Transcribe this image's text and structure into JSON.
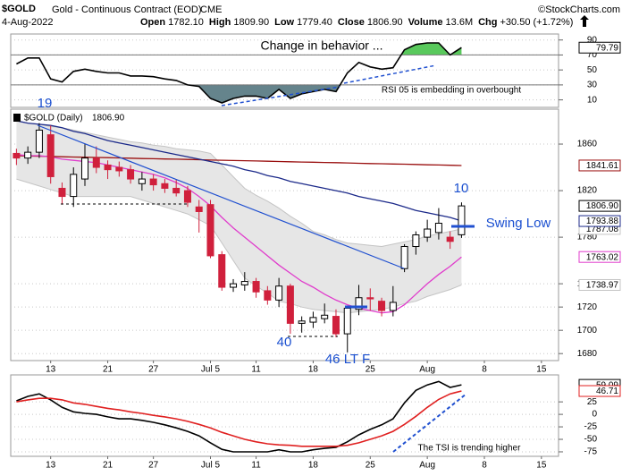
{
  "header": {
    "symbol": "$GOLD",
    "description": "Gold - Continuous Contract (EOD)",
    "exchange": "CME",
    "source": "©StockCharts.com",
    "date": "4-Aug-2022",
    "quote": [
      {
        "label": "Open",
        "value": "1782.10"
      },
      {
        "label": "High",
        "value": "1809.90"
      },
      {
        "label": "Low",
        "value": "1779.40"
      },
      {
        "label": "Close",
        "value": "1806.90"
      },
      {
        "label": "Volume",
        "value": "13.6M"
      },
      {
        "label": "Chg",
        "value": "+30.50 (+1.72%)"
      }
    ]
  },
  "chart_data": [
    {
      "type": "line",
      "series": [
        {
          "color": "#000000",
          "end_label": "79.79",
          "values": [
            58,
            66,
            66,
            38,
            34,
            48,
            51,
            48,
            46,
            46,
            42,
            42,
            41,
            38,
            36,
            30,
            28,
            12,
            6,
            12,
            15,
            15,
            12,
            24,
            12,
            18,
            21,
            24,
            21,
            46,
            60,
            54,
            51,
            53,
            77,
            84,
            86,
            86,
            70,
            79.79,
            null,
            null,
            null,
            null,
            null,
            null,
            null,
            null
          ]
        }
      ],
      "ylim": [
        0,
        98
      ],
      "yticks": [
        10,
        30,
        50,
        70,
        90
      ],
      "grid": true,
      "overbought": 70,
      "oversold": 30,
      "overbought_color": "#3cc040",
      "oversold_color": "#4a6f78",
      "annotations": [
        "Change in behavior ...",
        "RSI 05 is embedding in overbought"
      ]
    },
    {
      "type": "candlestick",
      "name": "$GOLD (Daily)",
      "end_label": "1806.90",
      "categories": [
        null,
        null,
        null,
        "13",
        null,
        null,
        null,
        null,
        "21",
        null,
        null,
        null,
        "27",
        null,
        null,
        null,
        null,
        "Jul 5",
        null,
        null,
        null,
        "11",
        null,
        null,
        null,
        null,
        "18",
        null,
        null,
        null,
        null,
        "25",
        null,
        null,
        null,
        null,
        "Aug",
        null,
        null,
        null,
        null,
        "8",
        null,
        null,
        null,
        null,
        "15",
        null
      ],
      "open": [
        1852,
        1848,
        1853,
        1868,
        1822,
        1815,
        1830,
        1848,
        1842,
        1840,
        1838,
        1826,
        1830,
        1826,
        1822,
        1820,
        1806,
        1808,
        1765,
        1737,
        1739,
        1742,
        1734,
        1726,
        1738,
        1706,
        1707,
        1710,
        1712,
        1697,
        1718,
        1728,
        1725,
        1717,
        1753,
        1772,
        1780,
        1784,
        1780,
        1782.1,
        null,
        null,
        null,
        null,
        null,
        null,
        null,
        null
      ],
      "high": [
        1856,
        1858,
        1878,
        1876,
        1827,
        1840,
        1860,
        1858,
        1846,
        1845,
        1842,
        1836,
        1834,
        1830,
        1830,
        1824,
        1812,
        1812,
        1768,
        1744,
        1750,
        1745,
        1738,
        1745,
        1740,
        1712,
        1716,
        1723,
        1718,
        1721,
        1739,
        1736,
        1728,
        1738,
        1774,
        1785,
        1795,
        1805,
        1785,
        1809.9,
        null,
        null,
        null,
        null,
        null,
        null,
        null,
        null
      ],
      "low": [
        1842,
        1843,
        1848,
        1826,
        1808,
        1806,
        1824,
        1835,
        1830,
        1832,
        1826,
        1820,
        1820,
        1818,
        1815,
        1806,
        1784,
        1762,
        1734,
        1733,
        1734,
        1728,
        1722,
        1720,
        1697,
        1698,
        1702,
        1706,
        1694,
        1681,
        1713,
        1717,
        1712,
        1712,
        1750,
        1765,
        1776,
        1778,
        1770,
        1779.4,
        null,
        null,
        null,
        null,
        null,
        null,
        null,
        null
      ],
      "close": [
        1848,
        1853,
        1872,
        1832,
        1815,
        1834,
        1848,
        1840,
        1838,
        1837,
        1830,
        1830,
        1825,
        1822,
        1818,
        1810,
        1802,
        1764,
        1737,
        1740,
        1742,
        1733,
        1726,
        1738,
        1706,
        1708,
        1711,
        1713,
        1697,
        1719,
        1728,
        1727,
        1717,
        1724,
        1772,
        1782,
        1787,
        1792,
        1776.4,
        1806.9,
        null,
        null,
        null,
        null,
        null,
        null,
        null,
        null
      ],
      "up_color": "#000000",
      "down_color": "#d0203c",
      "band": {
        "color": "#e6e6e6",
        "edge_color": "#c4c4c4",
        "upper_label": "1787.08",
        "lower_label": "1738.97",
        "upper": [
          1880,
          1878,
          1877,
          1875,
          1874,
          1872,
          1870,
          1868,
          1866,
          1864,
          1862,
          1861,
          1859,
          1858,
          1856,
          1855,
          1854,
          1852,
          1842,
          1832,
          1822,
          1816,
          1811,
          1805,
          1798,
          1792,
          1785,
          1782,
          1778,
          1775,
          1774,
          1773,
          1772,
          1774,
          1776,
          1778,
          1781,
          1783,
          1785,
          1787.08,
          null,
          null,
          null,
          null,
          null,
          null,
          null,
          null
        ],
        "lower": [
          1830,
          1827,
          1824,
          1821,
          1818,
          1815,
          1815,
          1815,
          1815,
          1815,
          1815,
          1812,
          1809,
          1806,
          1803,
          1800,
          1795,
          1790,
          1775,
          1760,
          1745,
          1738,
          1732,
          1725,
          1723,
          1720,
          1718,
          1717,
          1716,
          1715,
          1716,
          1717,
          1718,
          1720,
          1723,
          1725,
          1729,
          1732,
          1735,
          1738.97,
          null,
          null,
          null,
          null,
          null,
          null,
          null,
          null
        ]
      },
      "overlays": [
        {
          "color": "#9a1010",
          "end_label": "1841.61",
          "values": [
            1850.0,
            1849.8,
            1849.6,
            1849.4,
            1849.1,
            1848.9,
            1848.7,
            1848.5,
            1848.3,
            1848.1,
            1847.9,
            1847.6,
            1847.4,
            1847.2,
            1847.0,
            1846.8,
            1846.6,
            1846.3,
            1846.1,
            1845.9,
            1845.7,
            1845.5,
            1845.3,
            1845.0,
            1844.8,
            1844.6,
            1844.4,
            1844.2,
            1844.0,
            1843.8,
            1843.5,
            1843.3,
            1843.1,
            1842.9,
            1842.7,
            1842.5,
            1842.2,
            1842.0,
            1841.8,
            1841.61,
            null,
            null,
            null,
            null,
            null,
            null,
            null,
            null
          ]
        },
        {
          "color": "#1c2a8a",
          "end_label": "1793.88",
          "values": [
            1880,
            1878,
            1877,
            1876,
            1874,
            1871,
            1869,
            1866,
            1863,
            1861,
            1859,
            1857,
            1855,
            1853,
            1851,
            1849,
            1847,
            1845,
            1843,
            1841,
            1838,
            1836,
            1833,
            1831,
            1828,
            1826,
            1824,
            1822,
            1820,
            1818,
            1815,
            1813,
            1811,
            1809,
            1806,
            1803,
            1801,
            1799,
            1797,
            1793.88,
            null,
            null,
            null,
            null,
            null,
            null,
            null,
            null
          ]
        },
        {
          "color": "#e03ccc",
          "end_label": "1763.02",
          "values": [
            1851,
            1850,
            1850,
            1849,
            1847,
            1846,
            1845,
            1844,
            1842,
            1840,
            1838,
            1836,
            1834,
            1831,
            1827,
            1822,
            1815,
            1807,
            1797,
            1788,
            1780,
            1772,
            1764,
            1756,
            1749,
            1742,
            1737,
            1731,
            1726,
            1722,
            1719,
            1717,
            1715,
            1716,
            1722,
            1731,
            1740,
            1748,
            1755,
            1763.02,
            null,
            null,
            null,
            null,
            null,
            null,
            null,
            null
          ]
        }
      ],
      "ylim": [
        1674,
        1890
      ],
      "yticks": [
        1680,
        1700,
        1720,
        1740,
        1780,
        1820,
        1860
      ],
      "grid": true,
      "annotations": [
        "19",
        "40",
        "46 LT F",
        "10",
        "Swing Low"
      ]
    },
    {
      "type": "line",
      "categories": [
        null,
        null,
        null,
        "13",
        null,
        null,
        null,
        null,
        "21",
        null,
        null,
        null,
        "27",
        null,
        null,
        null,
        null,
        "Jul 5",
        null,
        null,
        null,
        "11",
        null,
        null,
        null,
        null,
        "18",
        null,
        null,
        null,
        null,
        "25",
        null,
        null,
        null,
        null,
        "Aug",
        null,
        null,
        null,
        null,
        "8",
        null,
        null,
        null,
        null,
        "15",
        null
      ],
      "series": [
        {
          "color": "#000000",
          "end_label": "59.09",
          "values": [
            27,
            36,
            41,
            29,
            14,
            5,
            2,
            0,
            -5,
            -9,
            -9,
            -12,
            -16,
            -21,
            -27,
            -34,
            -43,
            -57,
            -70,
            -75,
            -75,
            -75,
            -75,
            -71,
            -75,
            -75,
            -71,
            -68,
            -66,
            -55,
            -41,
            -30,
            -21,
            -9,
            23,
            48,
            59,
            66,
            54,
            59.09,
            null,
            null,
            null,
            null,
            null,
            null,
            null,
            null
          ]
        },
        {
          "color": "#e02020",
          "end_label": "46.71",
          "values": [
            25,
            29,
            32,
            32,
            29,
            23,
            20,
            16,
            12,
            9,
            5,
            2,
            -2,
            -5,
            -9,
            -14,
            -20,
            -27,
            -36,
            -43,
            -50,
            -55,
            -59,
            -61,
            -62,
            -64,
            -64,
            -64,
            -64,
            -62,
            -57,
            -50,
            -43,
            -34,
            -20,
            -4,
            14,
            30,
            41,
            46.71,
            null,
            null,
            null,
            null,
            null,
            null,
            null,
            null
          ]
        }
      ],
      "ylim": [
        -84,
        79
      ],
      "yticks": [
        -75,
        -50,
        -25,
        0,
        25
      ],
      "grid": true,
      "annotations": [
        "The TSI is trending higher"
      ]
    }
  ]
}
